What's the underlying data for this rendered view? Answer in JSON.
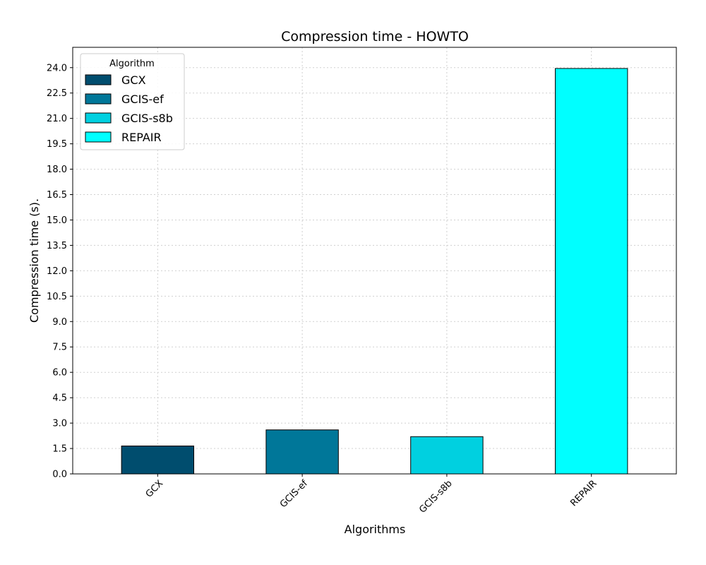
{
  "chart_data": {
    "type": "bar",
    "title": "Compression time -  HOWTO",
    "xlabel": "Algorithms",
    "ylabel": "Compression time (s).",
    "categories": [
      "GCX",
      "GCIS-ef",
      "GCIS-s8b",
      "REPAIR"
    ],
    "values": [
      1.65,
      2.6,
      2.2,
      23.95
    ],
    "colors": [
      "#004d6e",
      "#007799",
      "#00d0e0",
      "#00ffff"
    ],
    "ylim": [
      0,
      25.2
    ],
    "yticks": [
      0.0,
      1.5,
      3.0,
      4.5,
      6.0,
      7.5,
      9.0,
      10.5,
      12.0,
      13.5,
      15.0,
      16.5,
      18.0,
      19.5,
      21.0,
      22.5,
      24.0
    ],
    "grid": true,
    "legend": {
      "title": "Algorithm",
      "placement": "top-left",
      "entries": [
        "GCX",
        "GCIS-ef",
        "GCIS-s8b",
        "REPAIR"
      ]
    }
  }
}
